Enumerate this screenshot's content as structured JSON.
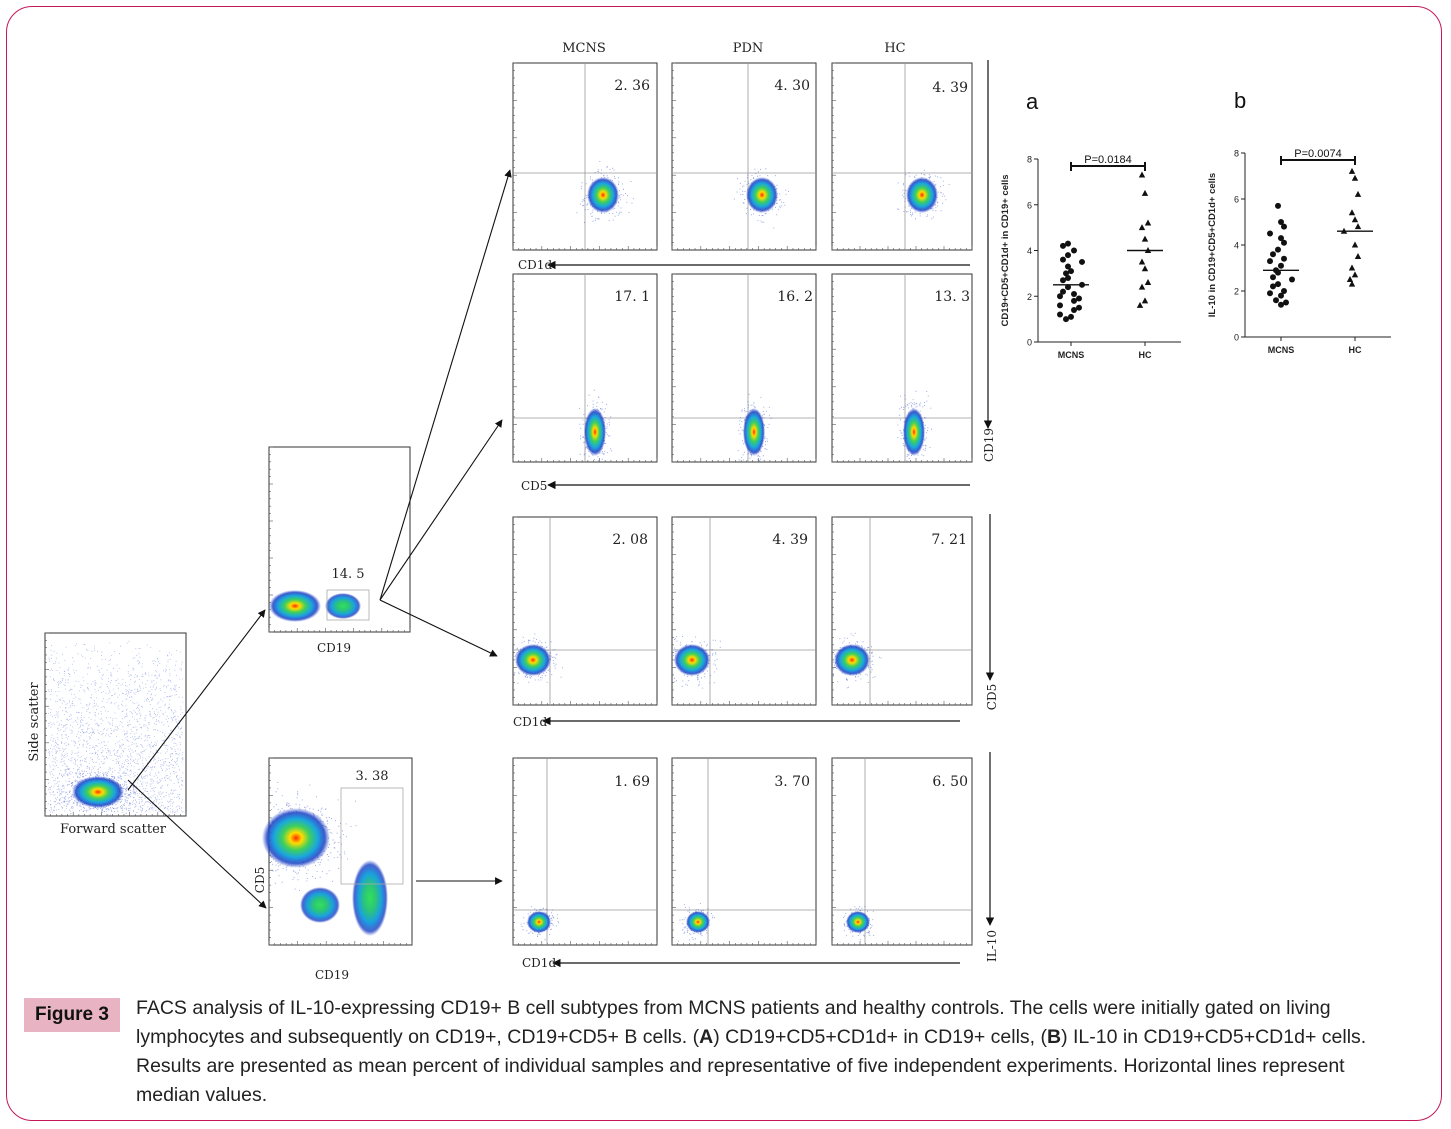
{
  "column_headers": [
    "MCNS",
    "PDN",
    "HC"
  ],
  "rows": [
    {
      "values": [
        "2. 36",
        "4. 30",
        "4. 39"
      ],
      "xlabel": "CD1d",
      "ylabel": "CD19"
    },
    {
      "values": [
        "17. 1",
        "16. 2",
        "13. 3"
      ],
      "xlabel": "CD5",
      "ylabel": ""
    },
    {
      "values": [
        "2. 08",
        "4. 39",
        "7. 21"
      ],
      "xlabel": "CD1d",
      "ylabel": "CD5"
    },
    {
      "values": [
        "1. 69",
        "3. 70",
        "6. 50"
      ],
      "xlabel": "CD1d",
      "ylabel": "IL-10"
    }
  ],
  "gating": {
    "fsc_ssc": {
      "xlabel": "Forward scatter",
      "ylabel": "Side scatter"
    },
    "cd19": {
      "value": "14. 5",
      "xlabel": "CD19"
    },
    "cd5_cd19": {
      "value": "3. 38",
      "xlabel": "CD19",
      "ylabel": "CD5"
    }
  },
  "chart_data": [
    {
      "type": "scatter",
      "panel_label": "a",
      "categories": [
        "MCNS",
        "HC"
      ],
      "ylabel": "CD19+CD5+CD1d+ in CD19+ cells",
      "ylim": [
        0,
        8
      ],
      "yticks": [
        "0",
        "2",
        "4",
        "6",
        "8"
      ],
      "pvalue": "P=0.0184",
      "series": [
        {
          "category": "MCNS",
          "marker": "circle",
          "values": [
            4.3,
            4.2,
            4.0,
            3.8,
            3.6,
            3.5,
            3.3,
            3.1,
            3.0,
            2.8,
            2.7,
            2.5,
            2.4,
            2.2,
            2.1,
            2.0,
            1.9,
            1.8,
            1.6,
            1.5,
            1.4,
            1.2,
            1.1,
            1.0
          ],
          "median": 2.5
        },
        {
          "category": "HC",
          "marker": "triangle",
          "values": [
            7.3,
            6.5,
            5.2,
            5.0,
            4.5,
            4.0,
            3.5,
            3.2,
            2.6,
            2.4,
            1.8,
            1.6
          ],
          "median": 4.0
        }
      ]
    },
    {
      "type": "scatter",
      "panel_label": "b",
      "categories": [
        "MCNS",
        "HC"
      ],
      "ylabel": "IL-10 in CD19+CD5+CD1d+ cells",
      "ylim": [
        0,
        8
      ],
      "yticks": [
        "0",
        "2",
        "4",
        "6",
        "8"
      ],
      "pvalue": "P=0.0074",
      "series": [
        {
          "category": "MCNS",
          "marker": "circle",
          "values": [
            5.7,
            5.0,
            4.8,
            4.5,
            4.3,
            4.1,
            3.8,
            3.6,
            3.4,
            3.3,
            3.1,
            2.9,
            2.8,
            2.6,
            2.5,
            2.3,
            2.2,
            2.0,
            1.9,
            1.8,
            1.6,
            1.5,
            1.4
          ],
          "median": 2.9
        },
        {
          "category": "HC",
          "marker": "triangle",
          "values": [
            7.2,
            6.9,
            6.2,
            5.4,
            5.1,
            4.8,
            4.6,
            4.0,
            3.5,
            3.0,
            2.7,
            2.5,
            2.3
          ],
          "median": 4.6
        }
      ]
    }
  ],
  "caption": {
    "tag": "Figure 3",
    "part1": "FACS analysis of IL-10-expressing CD19+ B cell subtypes from MCNS patients and healthy controls. The cells were initially gated on living lymphocytes and subsequently on CD19+, CD19+CD5+ B cells. (",
    "bold_a": "A",
    "part2": ") CD19+CD5+CD1d+ in CD19+ cells, (",
    "bold_b": "B",
    "part3": ") IL-10 in CD19+CD5+CD1d+ cells. Results are presented as mean percent of individual samples and representative of five independent experiments. Horizontal lines represent median values."
  }
}
